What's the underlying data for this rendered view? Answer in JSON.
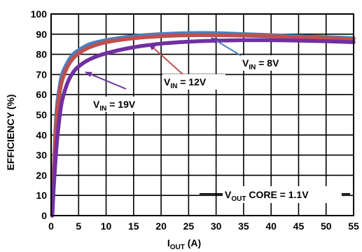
{
  "chart_data": {
    "type": "line",
    "xlabel": "I",
    "xlabel_sub": "OUT",
    "xlabel_unit": " (A)",
    "ylabel": "EFFICIENCY (%)",
    "xlim": [
      0,
      55
    ],
    "ylim": [
      0,
      100
    ],
    "xticks": [
      "0",
      "5",
      "10",
      "15",
      "20",
      "25",
      "30",
      "35",
      "40",
      "45",
      "50",
      "55"
    ],
    "yticks": [
      "0",
      "10",
      "20",
      "30",
      "40",
      "50",
      "60",
      "70",
      "80",
      "90",
      "100"
    ],
    "grid": true,
    "series": [
      {
        "name": "VIN = 8V",
        "color": "#4a7fc1",
        "x": [
          0.2,
          0.5,
          1,
          1.5,
          2,
          3,
          4,
          5,
          7,
          10,
          15,
          20,
          25,
          30,
          35,
          40,
          45,
          50,
          55
        ],
        "y": [
          0,
          25,
          52,
          63,
          70,
          76,
          80,
          82,
          85,
          87,
          89,
          90,
          90.5,
          90.5,
          90,
          89.5,
          89,
          88.5,
          88
        ]
      },
      {
        "name": "VIN = 12V",
        "color": "#c0504d",
        "x": [
          0.2,
          0.5,
          1,
          1.5,
          2,
          3,
          4,
          5,
          7,
          10,
          15,
          20,
          25,
          30,
          35,
          40,
          45,
          50,
          55
        ],
        "y": [
          0,
          22,
          48,
          60,
          67,
          74,
          78,
          80.5,
          83.5,
          86,
          88,
          89,
          89.5,
          89.5,
          89.3,
          89,
          88.5,
          88,
          87.5
        ]
      },
      {
        "name": "VIN = 19V",
        "color": "#7030a0",
        "x": [
          0.2,
          0.5,
          1,
          1.5,
          2,
          3,
          4,
          5,
          7,
          10,
          15,
          20,
          25,
          30,
          35,
          40,
          45,
          50,
          55
        ],
        "y": [
          0,
          15,
          35,
          48,
          57,
          66,
          71,
          74,
          77.5,
          80.5,
          83.5,
          85.3,
          86.3,
          86.8,
          87,
          87,
          86.8,
          86.5,
          86
        ]
      }
    ],
    "annotations": [
      {
        "main": "V",
        "sub": "IN",
        "rest": " = 8V",
        "arrow_to": [
          25.5,
          90.5
        ]
      },
      {
        "main": "V",
        "sub": "IN",
        "rest": " = 12V",
        "arrow_to": [
          18,
          89
        ]
      },
      {
        "main": "V",
        "sub": "IN",
        "rest": " = 19V",
        "arrow_to": [
          5.5,
          75
        ]
      },
      {
        "main": "V",
        "sub": "OUT",
        "rest": " CORE = 1.1V",
        "arrow_to": null
      }
    ]
  }
}
